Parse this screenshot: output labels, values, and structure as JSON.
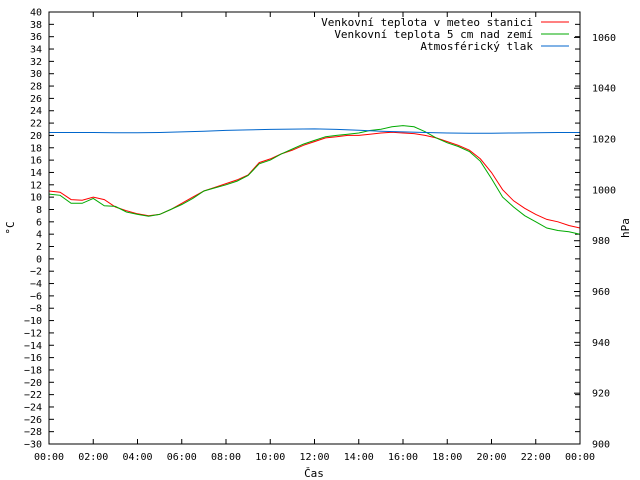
{
  "chart_data": {
    "type": "line",
    "xlabel": "Čas",
    "ylabel": "°C",
    "y2label": "hPa",
    "x_ticks": [
      "00:00",
      "02:00",
      "04:00",
      "06:00",
      "08:00",
      "10:00",
      "12:00",
      "14:00",
      "16:00",
      "18:00",
      "20:00",
      "22:00",
      "00:00"
    ],
    "xlim": [
      0,
      24
    ],
    "ylim": [
      -30,
      40
    ],
    "y_tick_step": 2,
    "y2lim": [
      900,
      1070
    ],
    "y2_ticks": [
      900,
      920,
      940,
      960,
      980,
      1000,
      1020,
      1040,
      1060
    ],
    "grid": false,
    "legend_position": "top-right",
    "series": [
      {
        "name": "Venkovní teplota v meteo stanici",
        "color": "#ff0000",
        "axis": "left",
        "x": [
          0,
          0.5,
          1,
          1.5,
          2,
          2.5,
          3,
          3.5,
          4,
          4.5,
          5,
          5.5,
          6,
          6.5,
          7,
          7.5,
          8,
          8.5,
          9,
          9.5,
          10,
          10.5,
          11,
          11.5,
          12,
          12.5,
          13,
          13.5,
          14,
          14.5,
          15,
          15.5,
          16,
          16.5,
          17,
          17.5,
          18,
          18.5,
          19,
          19.5,
          20,
          20.5,
          21,
          21.5,
          22,
          22.5,
          23,
          23.5,
          24
        ],
        "y": [
          11,
          10.8,
          9.6,
          9.5,
          10,
          9.6,
          8.4,
          7.8,
          7.3,
          7,
          7.2,
          8,
          9,
          10,
          11,
          11.6,
          12.2,
          12.8,
          13.6,
          15.6,
          16.2,
          17,
          17.6,
          18.4,
          19,
          19.6,
          19.8,
          20,
          20,
          20.2,
          20.4,
          20.5,
          20.4,
          20.3,
          20,
          19.6,
          19,
          18.4,
          17.6,
          16.2,
          14,
          11.2,
          9.4,
          8.2,
          7.2,
          6.4,
          6,
          5.4,
          5
        ]
      },
      {
        "name": "Venkovní teplota 5 cm nad zemí",
        "color": "#00aa00",
        "axis": "left",
        "x": [
          0,
          0.5,
          1,
          1.5,
          2,
          2.5,
          3,
          3.5,
          4,
          4.5,
          5,
          5.5,
          6,
          6.5,
          7,
          7.5,
          8,
          8.5,
          9,
          9.5,
          10,
          10.5,
          11,
          11.5,
          12,
          12.5,
          13,
          13.5,
          14,
          14.5,
          15,
          15.5,
          16,
          16.5,
          17,
          17.5,
          18,
          18.5,
          19,
          19.5,
          20,
          20.5,
          21,
          21.5,
          22,
          22.5,
          23,
          23.5,
          24
        ],
        "y": [
          10.5,
          10.3,
          9,
          9,
          9.8,
          8.6,
          8.5,
          7.6,
          7.2,
          6.9,
          7.2,
          8,
          8.8,
          9.8,
          11,
          11.5,
          12,
          12.6,
          13.5,
          15.4,
          16,
          17,
          17.8,
          18.6,
          19.2,
          19.8,
          20,
          20.2,
          20.4,
          20.8,
          21,
          21.4,
          21.6,
          21.4,
          20.6,
          19.6,
          18.8,
          18.2,
          17.4,
          15.8,
          13,
          10,
          8.4,
          7,
          6,
          5,
          4.6,
          4.4,
          4
        ]
      },
      {
        "name": "Atmosférický tlak",
        "color": "#0066cc",
        "axis": "right",
        "x": [
          0,
          1,
          2,
          3,
          4,
          5,
          6,
          7,
          8,
          9,
          10,
          11,
          12,
          13,
          14,
          15,
          16,
          17,
          18,
          19,
          20,
          21,
          22,
          23,
          24
        ],
        "y": [
          1022.6,
          1022.6,
          1022.6,
          1022.5,
          1022.5,
          1022.6,
          1022.8,
          1023.1,
          1023.4,
          1023.6,
          1023.8,
          1023.9,
          1024,
          1023.8,
          1023.5,
          1023.1,
          1022.8,
          1022.6,
          1022.4,
          1022.3,
          1022.3,
          1022.4,
          1022.5,
          1022.6,
          1022.6
        ]
      }
    ]
  }
}
